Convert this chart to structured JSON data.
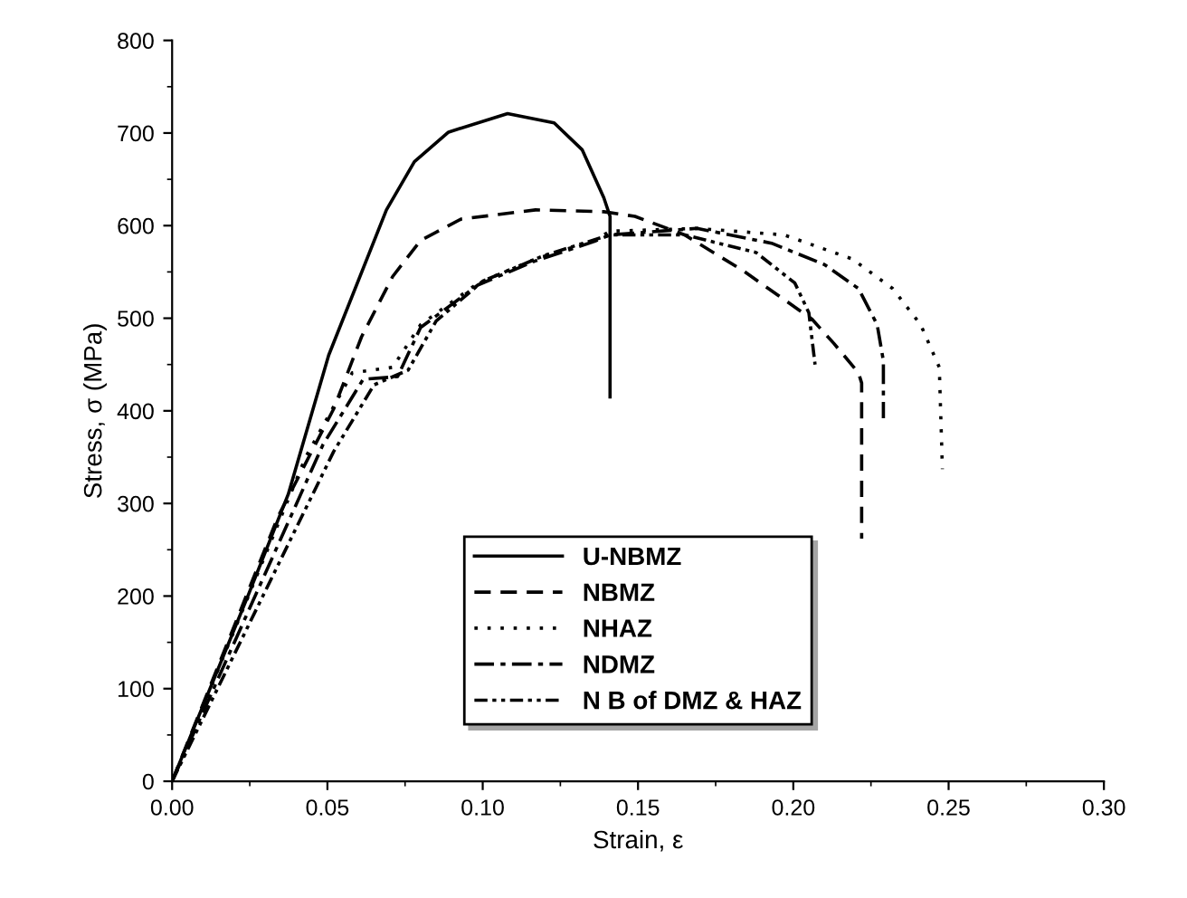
{
  "chart_data": {
    "type": "line",
    "xlabel": "Strain, ε",
    "ylabel": "Stress, σ (MPa)",
    "xlim": [
      0,
      0.3
    ],
    "ylim": [
      0,
      800
    ],
    "xticks": [
      {
        "value": 0,
        "label": "0.00"
      },
      {
        "value": 0.05,
        "label": "0.05"
      },
      {
        "value": 0.1,
        "label": "0.10"
      },
      {
        "value": 0.15,
        "label": "0.15"
      },
      {
        "value": 0.2,
        "label": "0.20"
      },
      {
        "value": 0.25,
        "label": "0.25"
      },
      {
        "value": 0.3,
        "label": "0.30"
      }
    ],
    "yticks": [
      0,
      100,
      200,
      300,
      400,
      500,
      600,
      700,
      800
    ],
    "grid": false,
    "legend": "bottom",
    "series": [
      {
        "name": "U-NBMZ",
        "color": "#000000",
        "line_style": "solid",
        "x": [
          0,
          0.0244,
          0.0374,
          0.0504,
          0.069,
          0.078,
          0.089,
          0.108,
          0.123,
          0.132,
          0.139,
          0.141,
          0.141
        ],
        "values": [
          0,
          200,
          310,
          460,
          617,
          669,
          701,
          721,
          711,
          682,
          630,
          610,
          415
        ]
      },
      {
        "name": "NBMZ",
        "color": "#000000",
        "line_style": "dashed",
        "x": [
          0,
          0.034,
          0.052,
          0.061,
          0.071,
          0.08,
          0.093,
          0.117,
          0.139,
          0.149,
          0.165,
          0.184,
          0.195,
          0.206,
          0.213,
          0.221,
          0.222,
          0.222
        ],
        "values": [
          0,
          285,
          402,
          480,
          545,
          584,
          607,
          617,
          615,
          610,
          590,
          551,
          525,
          499,
          473,
          441,
          430,
          262
        ]
      },
      {
        "name": "NHAZ",
        "color": "#000000",
        "line_style": "dotted",
        "x": [
          0,
          0.043,
          0.058,
          0.071,
          0.08,
          0.0985,
          0.117,
          0.136,
          0.141,
          0.169,
          0.197,
          0.219,
          0.232,
          0.241,
          0.247,
          0.248
        ],
        "values": [
          0,
          350,
          441,
          447,
          493,
          538,
          564,
          584,
          594,
          597,
          590,
          564,
          532,
          493,
          447,
          337
        ]
      },
      {
        "name": "NDMZ",
        "color": "#000000",
        "line_style": "dashdot",
        "x": [
          0,
          0.0485,
          0.0615,
          0.0726,
          0.08,
          0.0985,
          0.117,
          0.136,
          0.141,
          0.169,
          0.193,
          0.21,
          0.221,
          0.227,
          0.229,
          0.229
        ],
        "values": [
          0,
          363,
          434,
          437,
          490,
          536,
          562,
          583,
          590,
          597,
          581,
          558,
          532,
          493,
          454,
          392
        ]
      },
      {
        "name": "N B of DMZ & HAZ",
        "color": "#000000",
        "line_style": "dashdotdot",
        "x": [
          0,
          0.052,
          0.065,
          0.076,
          0.085,
          0.1,
          0.12,
          0.141,
          0.165,
          0.188,
          0.2005,
          0.205,
          0.207
        ],
        "values": [
          0,
          356,
          428,
          444,
          497,
          540,
          568,
          590,
          590,
          571,
          538,
          506,
          450
        ]
      }
    ]
  }
}
